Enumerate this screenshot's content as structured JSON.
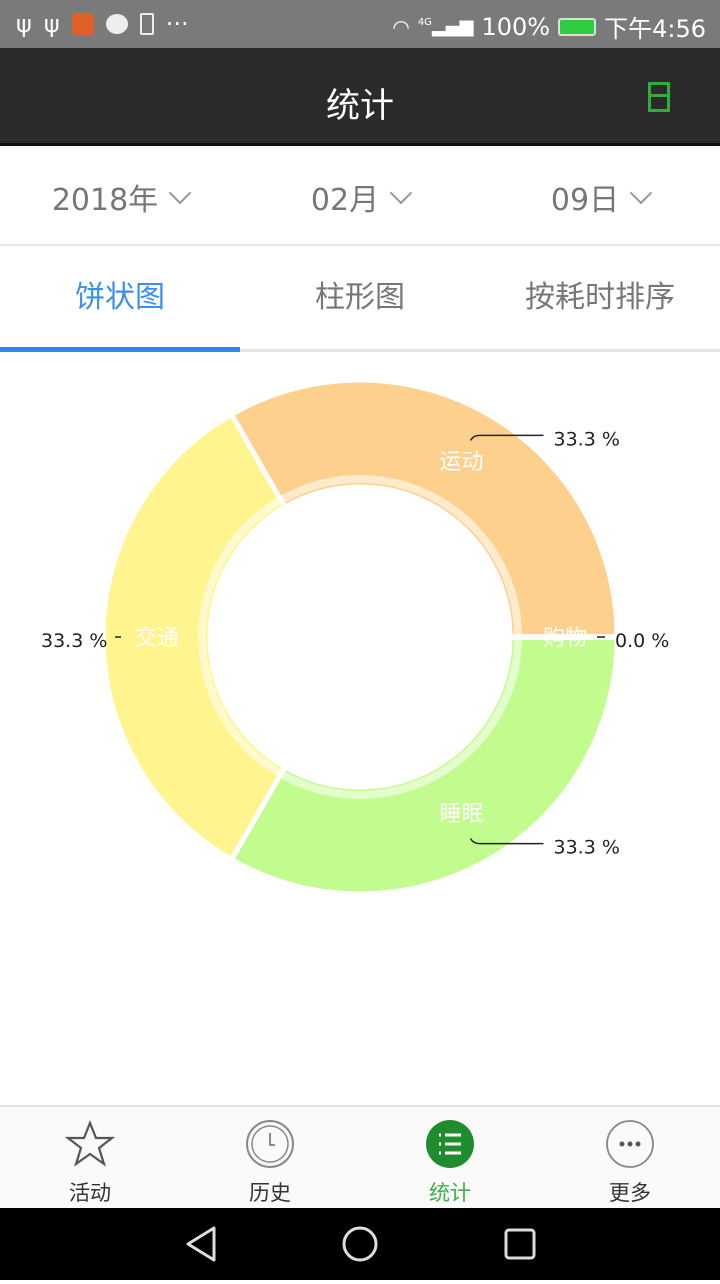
{
  "status_bar": {
    "battery": "100%",
    "time": "下午4:56",
    "network": "4G"
  },
  "app_bar": {
    "title": "统计",
    "calendar_icon": "calendar-icon"
  },
  "date_selectors": [
    {
      "value": "2018年"
    },
    {
      "value": "02月"
    },
    {
      "value": "09日"
    }
  ],
  "tabs": [
    {
      "label": "饼状图",
      "active": true
    },
    {
      "label": "柱形图",
      "active": false
    },
    {
      "label": "按耗时排序",
      "active": false
    }
  ],
  "chart_data": {
    "type": "pie",
    "donut": true,
    "slices": [
      {
        "label": "睡眠",
        "value": 33.3,
        "percent_label": "33.3 %",
        "color": "#C2FC8E"
      },
      {
        "label": "交通",
        "value": 33.3,
        "percent_label": "33.3 %",
        "color": "#FFF48E"
      },
      {
        "label": "运动",
        "value": 33.3,
        "percent_label": "33.3 %",
        "color": "#FED08E"
      },
      {
        "label": "购物",
        "value": 0.0,
        "percent_label": "0.0 %",
        "color": "#FFB0B0"
      }
    ]
  },
  "bottom_nav": [
    {
      "label": "活动",
      "icon": "star-icon",
      "active": false
    },
    {
      "label": "历史",
      "icon": "clock-icon",
      "active": false
    },
    {
      "label": "统计",
      "icon": "list-icon",
      "active": true
    },
    {
      "label": "更多",
      "icon": "more-icon",
      "active": false
    }
  ],
  "accent": "#2A86F0",
  "active_green": "#3CB14A"
}
